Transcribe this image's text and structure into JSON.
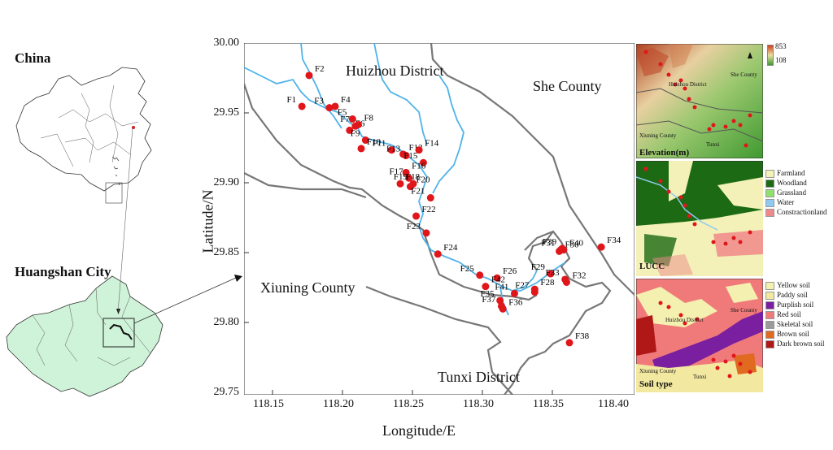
{
  "overview": {
    "country_label": "China",
    "city_label": "Huangshan City"
  },
  "main_map": {
    "district_labels": {
      "huizhou": "Huizhou District",
      "she": "She County",
      "xiuning": "Xiuning County",
      "tunxi": "Tunxi District"
    },
    "x_axis": {
      "label": "Longitude/E",
      "ticks": [
        "118.15",
        "118.20",
        "118.25",
        "118.30",
        "118.35",
        "118.40"
      ]
    },
    "y_axis": {
      "label": "Latitude/N",
      "ticks": [
        "30.00",
        "29.95",
        "29.90",
        "29.85",
        "29.80",
        "29.75"
      ]
    },
    "sites": [
      {
        "name": "F1",
        "lon": 118.17,
        "lat": 29.955
      },
      {
        "name": "F2",
        "lon": 118.175,
        "lat": 29.977
      },
      {
        "name": "F3",
        "lon": 118.189,
        "lat": 29.954
      },
      {
        "name": "F4",
        "lon": 118.193,
        "lat": 29.955
      },
      {
        "name": "F5",
        "lon": 118.205,
        "lat": 29.946
      },
      {
        "name": "F6",
        "lon": 118.203,
        "lat": 29.938
      },
      {
        "name": "F7",
        "lon": 118.207,
        "lat": 29.941
      },
      {
        "name": "F8",
        "lon": 118.209,
        "lat": 29.942
      },
      {
        "name": "F9",
        "lon": 118.214,
        "lat": 29.931
      },
      {
        "name": "F10",
        "lon": 118.211,
        "lat": 29.925
      },
      {
        "name": "F11",
        "lon": 118.232,
        "lat": 29.924
      },
      {
        "name": "F12",
        "lon": 118.24,
        "lat": 29.921
      },
      {
        "name": "F13",
        "lon": 118.242,
        "lat": 29.92
      },
      {
        "name": "F14",
        "lon": 118.251,
        "lat": 29.924
      },
      {
        "name": "F15",
        "lon": 118.254,
        "lat": 29.915
      },
      {
        "name": "F16",
        "lon": 118.242,
        "lat": 29.908
      },
      {
        "name": "F17",
        "lon": 118.244,
        "lat": 29.904
      },
      {
        "name": "F18",
        "lon": 118.238,
        "lat": 29.9
      },
      {
        "name": "F19",
        "lon": 118.247,
        "lat": 29.9
      },
      {
        "name": "F20",
        "lon": 118.245,
        "lat": 29.898
      },
      {
        "name": "F21",
        "lon": 118.259,
        "lat": 29.89
      },
      {
        "name": "F22",
        "lon": 118.249,
        "lat": 29.877
      },
      {
        "name": "F23",
        "lon": 118.256,
        "lat": 29.865
      },
      {
        "name": "F24",
        "lon": 118.264,
        "lat": 29.85
      },
      {
        "name": "F25",
        "lon": 118.293,
        "lat": 29.835
      },
      {
        "name": "F26",
        "lon": 118.305,
        "lat": 29.833
      },
      {
        "name": "F27",
        "lon": 118.331,
        "lat": 29.823
      },
      {
        "name": "F28",
        "lon": 118.331,
        "lat": 29.825
      },
      {
        "name": "F29",
        "lon": 118.342,
        "lat": 29.836
      },
      {
        "name": "F30",
        "lon": 118.348,
        "lat": 29.852
      },
      {
        "name": "F31",
        "lon": 118.349,
        "lat": 29.853
      },
      {
        "name": "F32",
        "lon": 118.353,
        "lat": 29.83
      },
      {
        "name": "F33",
        "lon": 118.352,
        "lat": 29.832
      },
      {
        "name": "F34",
        "lon": 118.377,
        "lat": 29.855
      },
      {
        "name": "F35",
        "lon": 118.307,
        "lat": 29.817
      },
      {
        "name": "F36",
        "lon": 118.309,
        "lat": 29.811
      },
      {
        "name": "F37",
        "lon": 118.308,
        "lat": 29.813
      },
      {
        "name": "F38",
        "lon": 118.355,
        "lat": 29.787
      },
      {
        "name": "F39",
        "lon": 118.35,
        "lat": 29.854
      },
      {
        "name": "F40",
        "lon": 118.351,
        "lat": 29.853
      },
      {
        "name": "F41",
        "lon": 118.317,
        "lat": 29.822
      },
      {
        "name": "F42",
        "lon": 118.297,
        "lat": 29.827
      }
    ]
  },
  "insets": {
    "elevation": {
      "title": "Elevation(m)",
      "max_label": "853",
      "min_label": "108",
      "districts": [
        "Huizhou District",
        "She County",
        "Xiuning County",
        "Tunxi"
      ]
    },
    "lucc": {
      "title": "LUCC",
      "legend": [
        {
          "label": "Farmland",
          "color": "#f3f0b8"
        },
        {
          "label": "Woodland",
          "color": "#1c6a14"
        },
        {
          "label": "Grassland",
          "color": "#90e070"
        },
        {
          "label": "Water",
          "color": "#8fcaf0"
        },
        {
          "label": "Constractionland",
          "color": "#f08a8a"
        }
      ]
    },
    "soil": {
      "title": "Soil type",
      "legend": [
        {
          "label": "Yellow soil",
          "color": "#f3f0b0"
        },
        {
          "label": "Paddy soil",
          "color": "#f2e8a0"
        },
        {
          "label": "Purplish soil",
          "color": "#7a1fa0"
        },
        {
          "label": "Red soil",
          "color": "#f07a7a"
        },
        {
          "label": "Skeletal soil",
          "color": "#9a9a9a"
        },
        {
          "label": "Brown soil",
          "color": "#e06a20"
        },
        {
          "label": "Dark brown soil",
          "color": "#b01818"
        }
      ],
      "districts": [
        "Huizhou District",
        "She County",
        "Xiuning County",
        "Tunxi"
      ]
    }
  },
  "colors": {
    "site": "#e0161a",
    "river": "#4fb3e8",
    "boundary": "#777777",
    "overview_fill": "#cff3d8"
  }
}
